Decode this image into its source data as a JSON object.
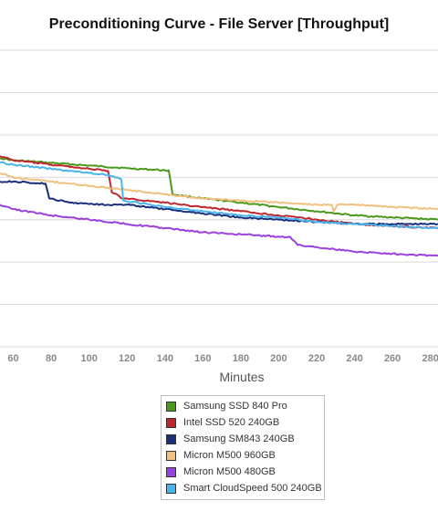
{
  "chart_data": {
    "type": "line",
    "title": "Preconditioning Curve - File Server [Throughput]",
    "xlabel": "Minutes",
    "ylabel": "",
    "x_ticks": [
      60,
      80,
      100,
      120,
      140,
      160,
      180,
      200,
      220,
      240,
      260,
      280
    ],
    "xlim": [
      53,
      284
    ],
    "ylim": [
      0,
      1
    ],
    "y_gridlines": [
      0.0,
      0.1429,
      0.2857,
      0.4286,
      0.5714,
      0.7143,
      0.8571,
      1.0
    ],
    "grid": true,
    "legend_position": "bottom",
    "series": [
      {
        "name": "Samsung SSD 840 Pro",
        "color": "#4a9a1a",
        "points": [
          [
            53,
            0.636
          ],
          [
            60,
            0.629
          ],
          [
            80,
            0.62
          ],
          [
            100,
            0.611
          ],
          [
            120,
            0.602
          ],
          [
            140,
            0.595
          ],
          [
            142,
            0.595
          ],
          [
            144,
            0.514
          ],
          [
            160,
            0.5
          ],
          [
            180,
            0.486
          ],
          [
            200,
            0.471
          ],
          [
            220,
            0.457
          ],
          [
            240,
            0.443
          ],
          [
            260,
            0.436
          ],
          [
            284,
            0.429
          ]
        ]
      },
      {
        "name": "Intel SSD 520 240GB",
        "color": "#c0272d",
        "points": [
          [
            53,
            0.643
          ],
          [
            60,
            0.629
          ],
          [
            80,
            0.614
          ],
          [
            100,
            0.6
          ],
          [
            110,
            0.593
          ],
          [
            112,
            0.521
          ],
          [
            116,
            0.507
          ],
          [
            117,
            0.5
          ],
          [
            120,
            0.5
          ],
          [
            140,
            0.486
          ],
          [
            160,
            0.471
          ],
          [
            180,
            0.457
          ],
          [
            200,
            0.443
          ],
          [
            220,
            0.429
          ],
          [
            240,
            0.414
          ],
          [
            260,
            0.407
          ],
          [
            284,
            0.4
          ]
        ]
      },
      {
        "name": "Samsung SM843 240GB",
        "color": "#1a2f7a",
        "points": [
          [
            53,
            0.557
          ],
          [
            60,
            0.557
          ],
          [
            77,
            0.55
          ],
          [
            79,
            0.5
          ],
          [
            90,
            0.486
          ],
          [
            110,
            0.479
          ],
          [
            120,
            0.479
          ],
          [
            140,
            0.464
          ],
          [
            160,
            0.45
          ],
          [
            180,
            0.436
          ],
          [
            200,
            0.429
          ],
          [
            220,
            0.421
          ],
          [
            240,
            0.414
          ],
          [
            260,
            0.414
          ],
          [
            284,
            0.414
          ]
        ]
      },
      {
        "name": "Micron M500 960GB",
        "color": "#f0c080",
        "points": [
          [
            53,
            0.586
          ],
          [
            60,
            0.571
          ],
          [
            80,
            0.557
          ],
          [
            100,
            0.543
          ],
          [
            120,
            0.529
          ],
          [
            140,
            0.514
          ],
          [
            160,
            0.5
          ],
          [
            180,
            0.493
          ],
          [
            200,
            0.486
          ],
          [
            220,
            0.479
          ],
          [
            228,
            0.479
          ],
          [
            229,
            0.457
          ],
          [
            231,
            0.479
          ],
          [
            240,
            0.479
          ],
          [
            260,
            0.471
          ],
          [
            284,
            0.464
          ]
        ]
      },
      {
        "name": "Micron M500 480GB",
        "color": "#9b40e0",
        "points": [
          [
            53,
            0.479
          ],
          [
            60,
            0.464
          ],
          [
            80,
            0.443
          ],
          [
            100,
            0.429
          ],
          [
            120,
            0.414
          ],
          [
            140,
            0.4
          ],
          [
            160,
            0.386
          ],
          [
            180,
            0.379
          ],
          [
            200,
            0.371
          ],
          [
            206,
            0.371
          ],
          [
            210,
            0.343
          ],
          [
            220,
            0.336
          ],
          [
            240,
            0.321
          ],
          [
            260,
            0.314
          ],
          [
            284,
            0.307
          ]
        ]
      },
      {
        "name": "Smart CloudSpeed 500 240GB",
        "color": "#4ab4ee",
        "points": [
          [
            53,
            0.621
          ],
          [
            60,
            0.614
          ],
          [
            80,
            0.6
          ],
          [
            100,
            0.586
          ],
          [
            110,
            0.579
          ],
          [
            117,
            0.564
          ],
          [
            118,
            0.493
          ],
          [
            140,
            0.471
          ],
          [
            160,
            0.457
          ],
          [
            180,
            0.443
          ],
          [
            200,
            0.436
          ],
          [
            220,
            0.421
          ],
          [
            240,
            0.414
          ],
          [
            260,
            0.407
          ],
          [
            284,
            0.4
          ]
        ]
      }
    ]
  }
}
